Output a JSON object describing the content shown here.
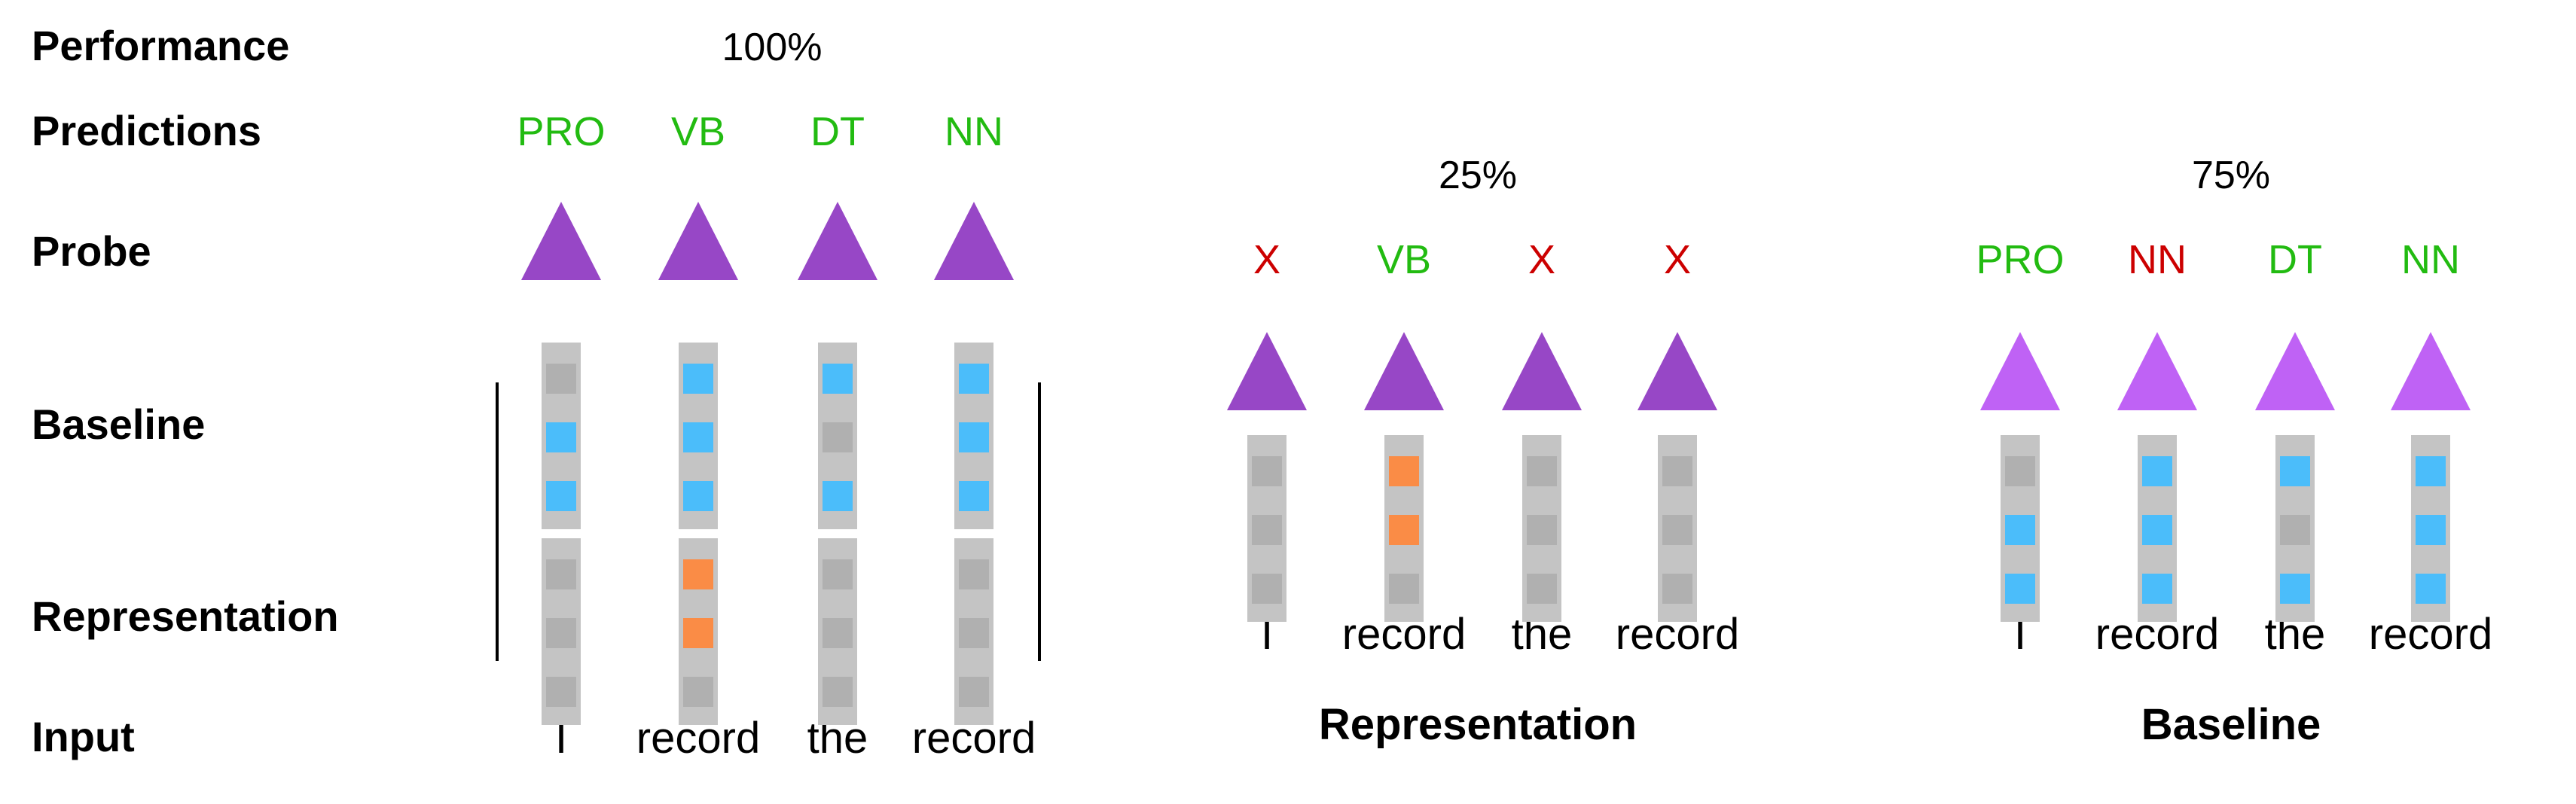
{
  "colors": {
    "correct": "#22bb11",
    "wrong": "#cc0000",
    "probe_main": "#9747c6",
    "probe_baseline": "#bf62f5",
    "column": "#c4c4c4",
    "slot_empty": "#b0b0b0",
    "slot_blue": "#4bbdfa",
    "slot_orange": "#fa8c46"
  },
  "row_labels": {
    "performance": "Performance",
    "predictions": "Predictions",
    "probe": "Probe",
    "baseline": "Baseline",
    "representation": "Representation",
    "input": "Input"
  },
  "panels": [
    {
      "id": "combined",
      "caption": "",
      "performance": "100%",
      "predictions": [
        {
          "label": "PRO",
          "status": "correct"
        },
        {
          "label": "VB",
          "status": "correct"
        },
        {
          "label": "DT",
          "status": "correct"
        },
        {
          "label": "NN",
          "status": "correct"
        }
      ],
      "probe_color": "main",
      "words": [
        "I",
        "record",
        "the",
        "record"
      ],
      "baseline_slots": [
        [
          "empty",
          "blue",
          "blue"
        ],
        [
          "blue",
          "blue",
          "blue"
        ],
        [
          "blue",
          "empty",
          "blue"
        ],
        [
          "blue",
          "blue",
          "blue"
        ]
      ],
      "representation_slots": [
        [
          "empty",
          "empty",
          "empty"
        ],
        [
          "orange",
          "orange",
          "empty"
        ],
        [
          "empty",
          "empty",
          "empty"
        ],
        [
          "empty",
          "empty",
          "empty"
        ]
      ]
    },
    {
      "id": "representation-only",
      "caption": "Representation",
      "performance": "25%",
      "predictions": [
        {
          "label": "X",
          "status": "wrong"
        },
        {
          "label": "VB",
          "status": "correct"
        },
        {
          "label": "X",
          "status": "wrong"
        },
        {
          "label": "X",
          "status": "wrong"
        }
      ],
      "probe_color": "main",
      "words": [
        "I",
        "record",
        "the",
        "record"
      ],
      "slots": [
        [
          "empty",
          "empty",
          "empty"
        ],
        [
          "orange",
          "orange",
          "empty"
        ],
        [
          "empty",
          "empty",
          "empty"
        ],
        [
          "empty",
          "empty",
          "empty"
        ]
      ]
    },
    {
      "id": "baseline-only",
      "caption": "Baseline",
      "performance": "75%",
      "predictions": [
        {
          "label": "PRO",
          "status": "correct"
        },
        {
          "label": "NN",
          "status": "wrong"
        },
        {
          "label": "DT",
          "status": "correct"
        },
        {
          "label": "NN",
          "status": "correct"
        }
      ],
      "probe_color": "baseline",
      "words": [
        "I",
        "record",
        "the",
        "record"
      ],
      "slots": [
        [
          "empty",
          "blue",
          "blue"
        ],
        [
          "blue",
          "blue",
          "blue"
        ],
        [
          "blue",
          "empty",
          "blue"
        ],
        [
          "blue",
          "blue",
          "blue"
        ]
      ]
    }
  ]
}
